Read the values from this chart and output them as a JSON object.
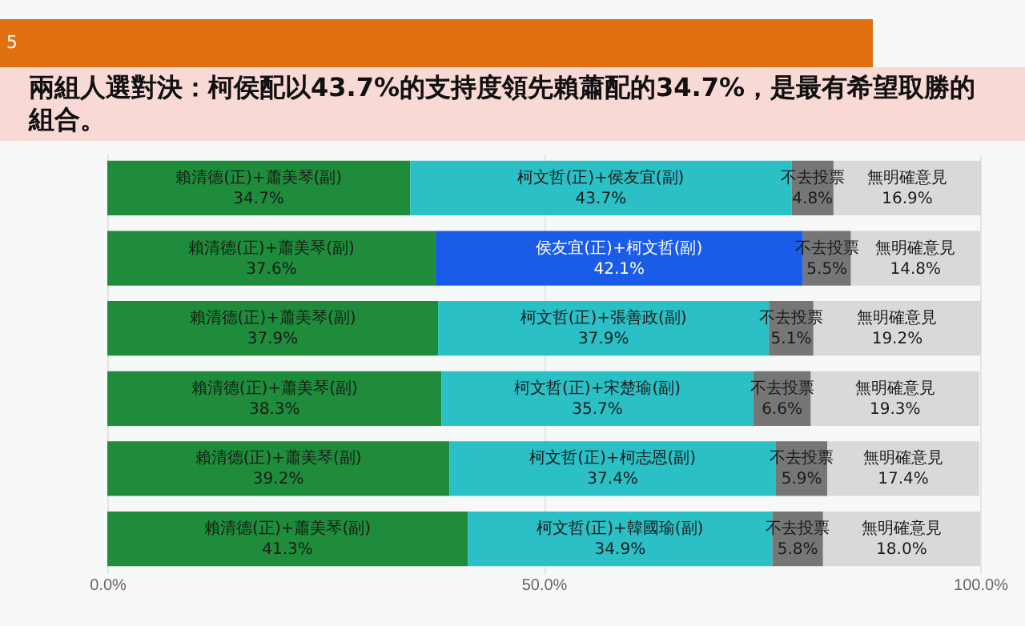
{
  "chart_data": {
    "type": "bar",
    "orientation": "horizontal",
    "stacked": true,
    "title": "兩組人選對決：柯侯配以43.7%的支持度領先賴蕭配的34.7%，是最有希望取勝的組合。",
    "annotations": [
      "5"
    ],
    "categories": [
      null,
      null,
      null,
      null,
      null,
      null
    ],
    "series": [
      {
        "color": "#1e8c3a",
        "values": [
          34.7,
          37.6,
          37.9,
          38.3,
          39.2,
          41.3
        ],
        "value_labels": [
          "賴清德(正)+蕭美琴(副)\n34.7%",
          "賴清德(正)+蕭美琴(副)\n37.6%",
          "賴清德(正)+蕭美琴(副)\n37.9%",
          "賴清德(正)+蕭美琴(副)\n38.3%",
          "賴清德(正)+蕭美琴(副)\n39.2%",
          "賴清德(正)+蕭美琴(副)\n41.3%"
        ]
      },
      {
        "colors": [
          "#2bbfc6",
          "#1a5ce8",
          "#2bbfc6",
          "#2bbfc6",
          "#2bbfc6",
          "#2bbfc6"
        ],
        "values": [
          43.7,
          42.1,
          37.9,
          35.7,
          37.4,
          34.9
        ],
        "value_labels": [
          "柯文哲(正)+侯友宜(副)\n43.7%",
          "侯友宜(正)+柯文哲(副)\n42.1%",
          "柯文哲(正)+張善政(副)\n37.9%",
          "柯文哲(正)+宋楚瑜(副)\n35.7%",
          "柯文哲(正)+柯志恩(副)\n37.4%",
          "柯文哲(正)+韓國瑜(副)\n34.9%"
        ]
      },
      {
        "color": "#767676",
        "values": [
          4.8,
          5.5,
          5.1,
          6.6,
          5.9,
          5.8
        ],
        "value_labels": [
          "不去投票\n4.8%",
          "不去投票\n5.5%",
          "不去投票\n5.1%",
          "不去投票\n6.6%",
          "不去投票\n5.9%",
          "不去投票\n5.8%"
        ]
      },
      {
        "color": "#d9d9d9",
        "values": [
          16.9,
          14.8,
          19.2,
          19.3,
          17.4,
          18.0
        ],
        "value_labels": [
          "無明確意見\n16.9%",
          "無明確意見\n14.8%",
          "無明確意見\n19.2%",
          "無明確意見\n19.3%",
          "無明確意見\n17.4%",
          "無明確意見\n18.0%"
        ]
      }
    ],
    "xlim": [
      0,
      100
    ],
    "xticks": [
      {
        "value": 0,
        "label": "0.0%"
      },
      {
        "value": 50,
        "label": "50.0%"
      },
      {
        "value": 100,
        "label": "100.0%"
      }
    ],
    "grid": "x"
  }
}
